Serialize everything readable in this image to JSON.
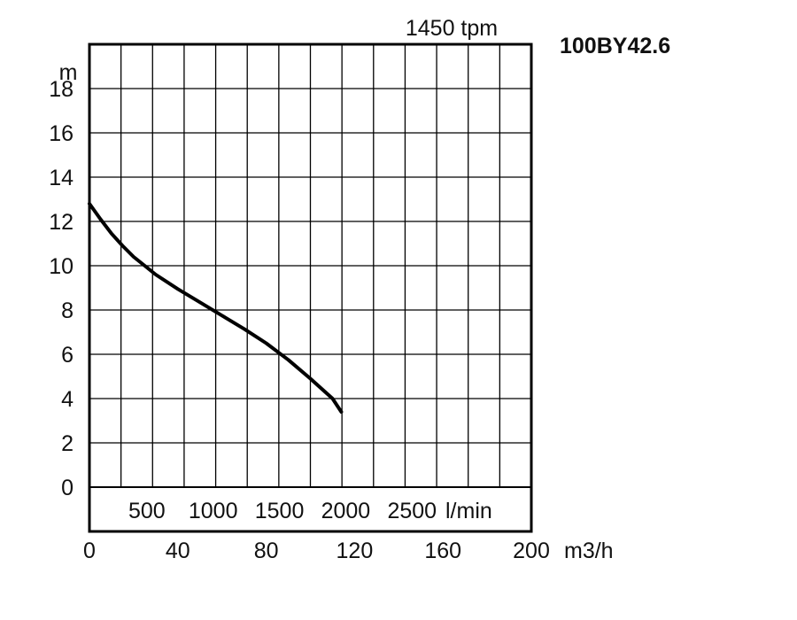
{
  "chart_data": {
    "type": "line",
    "title": "100BY42.6",
    "speed_label": "1450 tpm",
    "ylabel": "m",
    "xlabel": "m3/h",
    "flow_lmin_unit": "l/min",
    "xlim": [
      0,
      200
    ],
    "ylim": [
      0,
      20
    ],
    "x_ticks": [
      "0",
      "40",
      "80",
      "120",
      "160",
      "200"
    ],
    "x_tick_values": [
      0,
      40,
      80,
      120,
      160,
      200
    ],
    "y_ticks": [
      "0",
      "2",
      "4",
      "6",
      "8",
      "10",
      "12",
      "14",
      "16",
      "18"
    ],
    "y_tick_values": [
      0,
      2,
      4,
      6,
      8,
      10,
      12,
      14,
      16,
      18
    ],
    "lmin_ticks": [
      "500",
      "1000",
      "1500",
      "2000",
      "2500"
    ],
    "lmin_tick_values": [
      500,
      1000,
      1500,
      2000,
      2500
    ],
    "grid": true,
    "series": [
      {
        "color": "#000000",
        "x": [
          0,
          5,
          10,
          15,
          20,
          25,
          30,
          40,
          50,
          60,
          70,
          80,
          90,
          100,
          110,
          114
        ],
        "y": [
          12.8,
          12.1,
          11.45,
          10.9,
          10.4,
          10.0,
          9.6,
          8.95,
          8.35,
          7.75,
          7.15,
          6.5,
          5.75,
          4.9,
          4.0,
          3.4
        ]
      }
    ]
  }
}
